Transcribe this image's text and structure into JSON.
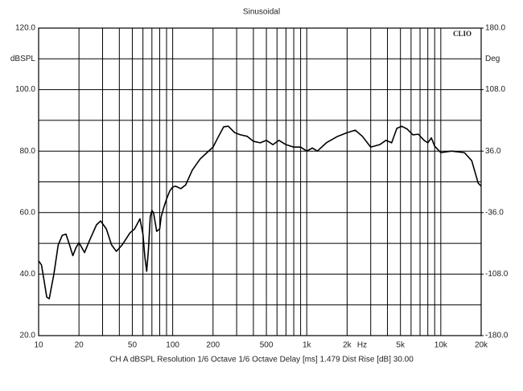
{
  "chart_data": {
    "type": "line",
    "title": "Sinusoidal",
    "brand": "CLIO",
    "ylabel": "dBSPL",
    "y2label": "Deg",
    "xlabel": "Hz",
    "footer": "CH A   dBSPL   Resolution 1/6 Octave   1/6 Octave   Delay [ms] 1.479   Dist Rise [dB] 30.00",
    "xscale": "log",
    "xlim": [
      10,
      20000
    ],
    "xticks": [
      10,
      20,
      50,
      100,
      200,
      500,
      {
        "value": 1000,
        "label": "1k"
      },
      {
        "value": 2000,
        "label": "2k"
      },
      {
        "value": 5000,
        "label": "5k"
      },
      {
        "value": 10000,
        "label": "10k"
      },
      {
        "value": 20000,
        "label": "20k"
      }
    ],
    "xminor": [
      30,
      40,
      60,
      70,
      80,
      90,
      300,
      400,
      600,
      700,
      800,
      900,
      3000,
      4000,
      6000,
      7000,
      8000,
      9000
    ],
    "ylim": [
      20,
      120
    ],
    "yticks": [
      {
        "value": 20,
        "label": "20.0"
      },
      {
        "value": 40,
        "label": "40.0"
      },
      {
        "value": 60,
        "label": "60.0"
      },
      {
        "value": 80,
        "label": "80.0"
      },
      {
        "value": 100,
        "label": "100.0"
      },
      {
        "value": 120,
        "label": "120.0"
      }
    ],
    "yminor": [
      30,
      50,
      70,
      90,
      110
    ],
    "y2lim": [
      -180,
      180
    ],
    "y2ticks": [
      {
        "value": -180,
        "label": "-180.0"
      },
      {
        "value": -108,
        "label": "-108.0"
      },
      {
        "value": -36,
        "label": "-36.0"
      },
      {
        "value": 36,
        "label": "36.0"
      },
      {
        "value": 108,
        "label": "108.0"
      },
      {
        "value": 180,
        "label": "180.0"
      }
    ],
    "grid": true,
    "x": [
      10,
      10.5,
      11,
      11.5,
      12,
      13,
      14,
      15,
      16,
      17,
      18,
      19,
      20,
      21,
      22,
      24,
      27,
      29,
      32,
      35,
      38,
      42,
      48,
      52,
      57,
      60,
      62,
      64,
      66,
      68,
      70,
      72,
      76,
      80,
      82,
      86,
      90,
      95,
      100,
      105,
      115,
      125,
      140,
      160,
      180,
      200,
      220,
      240,
      260,
      290,
      320,
      360,
      400,
      450,
      500,
      560,
      620,
      700,
      800,
      900,
      1000,
      1100,
      1200,
      1400,
      1700,
      2000,
      2300,
      2600,
      3000,
      3500,
      3900,
      4300,
      4700,
      5100,
      5600,
      6200,
      6800,
      7500,
      8000,
      8500,
      9000,
      10000,
      12000,
      15000,
      17000,
      19000,
      20000
    ],
    "series": [
      {
        "color": "#000000",
        "values": [
          44.3,
          43,
          37.7,
          32.5,
          32,
          40,
          49.5,
          52.6,
          53,
          49.5,
          46,
          48.6,
          50.2,
          48.6,
          47,
          51,
          56,
          57.3,
          54.7,
          49.5,
          47.4,
          49.5,
          53.4,
          54.7,
          58,
          53,
          45.6,
          40.9,
          48.2,
          58.6,
          60.7,
          59.9,
          53.9,
          54.7,
          58.6,
          61.8,
          64.4,
          67,
          68.3,
          68.6,
          67.8,
          69,
          73.8,
          77.4,
          79.5,
          81.3,
          84.8,
          87.9,
          88.1,
          86,
          85.3,
          84.8,
          83.2,
          82.7,
          83.5,
          82.1,
          83.5,
          82.1,
          81.3,
          81.3,
          80,
          81,
          80,
          82.7,
          84.8,
          86,
          86.8,
          84.8,
          81.3,
          82.1,
          83.5,
          82.7,
          87.4,
          88.1,
          87.2,
          85.3,
          85.5,
          83.5,
          82.7,
          84.3,
          81.6,
          79.5,
          80,
          79.5,
          76.9,
          69.6,
          68.6
        ]
      }
    ]
  }
}
